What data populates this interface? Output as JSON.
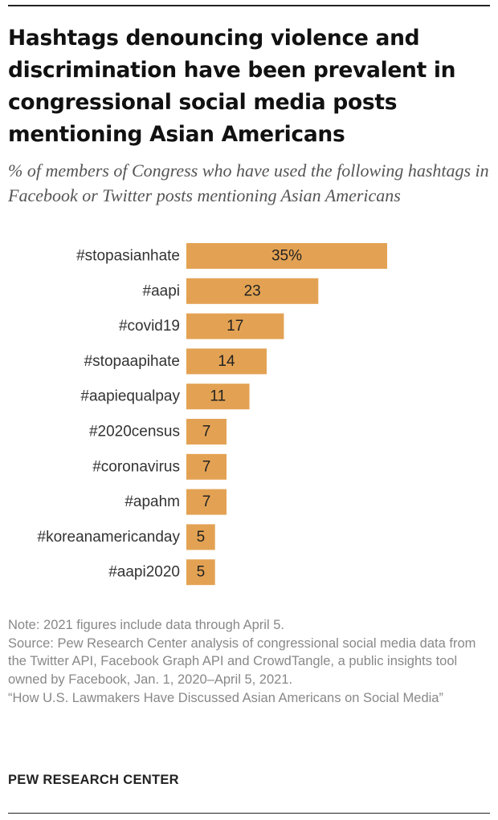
{
  "chart_data": {
    "type": "bar",
    "orientation": "horizontal",
    "title": "Hashtags denouncing violence and discrimination have been prevalent in congressional social media posts mentioning Asian Americans",
    "subtitle": "% of members of Congress who have used the following hashtags in Facebook or Twitter posts mentioning Asian Americans",
    "categories": [
      "#stopasianhate",
      "#aapi",
      "#covid19",
      "#stopaapihate",
      "#aapiequalpay",
      "#2020census",
      "#coronavirus",
      "#apahm",
      "#koreanamericanday",
      "#aapi2020"
    ],
    "values": [
      35,
      23,
      17,
      14,
      11,
      7,
      7,
      7,
      5,
      5
    ],
    "value_labels": [
      "35%",
      "23",
      "17",
      "14",
      "11",
      "7",
      "7",
      "7",
      "5",
      "5"
    ],
    "xlim": [
      0,
      35
    ],
    "bar_color": "#e3a253",
    "xlabel": "",
    "ylabel": ""
  },
  "notes": {
    "note": "Note: 2021 figures include data through April 5.",
    "source": "Source: Pew Research Center analysis of congressional social media data from the Twitter API, Facebook Graph API and CrowdTangle, a public insights tool owned by Facebook, Jan. 1, 2020–April 5, 2021.",
    "report": "“How U.S. Lawmakers  Have Discussed Asian Americans on Social Media”"
  },
  "brand": "PEW RESEARCH CENTER"
}
